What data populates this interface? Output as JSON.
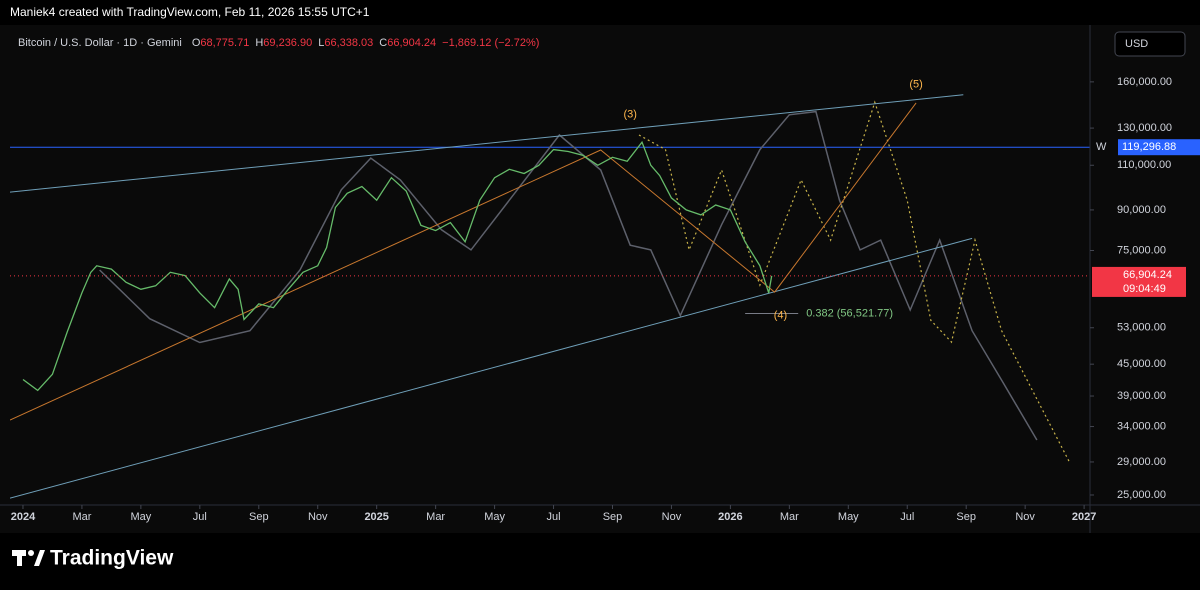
{
  "header": {
    "credit": "Maniek4 created with TradingView.com, Feb 11, 2026 15:55 UTC+1"
  },
  "legend": {
    "symbol": "Bitcoin / U.S. Dollar · 1D · Gemini",
    "ohlc": [
      {
        "label": "O",
        "value": "68,775.71"
      },
      {
        "label": "H",
        "value": "69,236.90"
      },
      {
        "label": "L",
        "value": "66,338.03"
      },
      {
        "label": "C",
        "value": "66,904.24"
      }
    ],
    "change": "−1,869.12 (−2.72%)"
  },
  "currency": "USD",
  "footer": {
    "brand": "TradingView"
  },
  "chart_data": {
    "type": "line",
    "log_scale": true,
    "grid": false,
    "xlim": [
      -0.44,
      36.2
    ],
    "ylim": [
      23900,
      202000
    ],
    "xticks": [
      {
        "value": 0,
        "label": "2024"
      },
      {
        "value": 2,
        "label": "Mar"
      },
      {
        "value": 4,
        "label": "May"
      },
      {
        "value": 6,
        "label": "Jul"
      },
      {
        "value": 8,
        "label": "Sep"
      },
      {
        "value": 10,
        "label": "Nov"
      },
      {
        "value": 12,
        "label": "2025"
      },
      {
        "value": 14,
        "label": "Mar"
      },
      {
        "value": 16,
        "label": "May"
      },
      {
        "value": 18,
        "label": "Jul"
      },
      {
        "value": 20,
        "label": "Sep"
      },
      {
        "value": 22,
        "label": "Nov"
      },
      {
        "value": 24,
        "label": "2026"
      },
      {
        "value": 26,
        "label": "Mar"
      },
      {
        "value": 28,
        "label": "May"
      },
      {
        "value": 30,
        "label": "Jul"
      },
      {
        "value": 32,
        "label": "Sep"
      },
      {
        "value": 34,
        "label": "Nov"
      },
      {
        "value": 36,
        "label": "2027"
      }
    ],
    "yticks": [
      {
        "value": 25000,
        "label": "25,000.00"
      },
      {
        "value": 29000,
        "label": "29,000.00"
      },
      {
        "value": 34000,
        "label": "34,000.00"
      },
      {
        "value": 39000,
        "label": "39,000.00"
      },
      {
        "value": 45000,
        "label": "45,000.00"
      },
      {
        "value": 53000,
        "label": "53,000.00"
      },
      {
        "value": 75000,
        "label": "75,000.00"
      },
      {
        "value": 90000,
        "label": "90,000.00"
      },
      {
        "value": 110000,
        "label": "110,000.00"
      },
      {
        "value": 130000,
        "label": "130,000.00"
      },
      {
        "value": 160000,
        "label": "160,000.00"
      }
    ],
    "series": [
      {
        "style": "solid",
        "color": "#5d606b",
        "width": 1.5,
        "x": [
          2.6,
          4.3,
          6.0,
          7.7,
          9.4,
          10.8,
          11.8,
          12.8,
          14.2,
          15.2,
          16.5,
          18.2,
          19.6,
          20.6,
          21.3,
          22.3,
          23.7,
          25.0,
          26.0,
          26.9,
          27.7,
          28.4,
          29.1,
          30.1,
          31.1,
          32.2,
          33.2,
          34.4
        ],
        "values": [
          68700,
          55200,
          49600,
          52300,
          68700,
          98500,
          113600,
          103000,
          82300,
          75200,
          94000,
          126000,
          107700,
          76800,
          75200,
          56000,
          84200,
          118000,
          138000,
          140000,
          94000,
          75200,
          78600,
          57400,
          78600,
          52300,
          41900,
          32000
        ]
      },
      {
        "style": "dotted",
        "color": "#c9b44a",
        "width": 1.2,
        "x": [
          20.9,
          21.8,
          22.6,
          23.7,
          25.0,
          26.4,
          27.4,
          28.9,
          30.0,
          30.8,
          31.5,
          32.3,
          33.2,
          35.5
        ],
        "values": [
          126000,
          118000,
          75200,
          107700,
          64200,
          103000,
          78600,
          146000,
          94000,
          54800,
          49700,
          78600,
          52300,
          29000
        ]
      },
      {
        "style": "solid",
        "color": "#6f9fb8",
        "width": 1,
        "x": [
          -0.44,
          31.9
        ],
        "values": [
          97500,
          151000
        ]
      },
      {
        "style": "solid",
        "color": "#6f9fb8",
        "width": 1,
        "x": [
          -0.44,
          32.2
        ],
        "values": [
          24650,
          79200
        ]
      },
      {
        "style": "solid",
        "color": "#c7772e",
        "width": 1,
        "x": [
          -0.44,
          19.6,
          25.5,
          30.3
        ],
        "values": [
          35000,
          117800,
          62200,
          145600
        ]
      },
      {
        "style": "solid",
        "color": "#66bb6a",
        "width": 1.3,
        "x": [
          0,
          0.5,
          1,
          1.5,
          2,
          2.3,
          2.5,
          3,
          3.5,
          4,
          4.5,
          5,
          5.5,
          6,
          6.5,
          7,
          7.3,
          7.5,
          8,
          8.5,
          9,
          9.5,
          10,
          10.3,
          10.6,
          11,
          11.5,
          12,
          12.5,
          13,
          13.5,
          14,
          14.5,
          15,
          15.5,
          16,
          16.5,
          17,
          17.5,
          18,
          18.5,
          19,
          19.5,
          20,
          20.5,
          21,
          21.3,
          21.6,
          22,
          22.5,
          23,
          23.5,
          24,
          24.5,
          25,
          25.3,
          25.4
        ],
        "values": [
          42000,
          40000,
          43000,
          52000,
          62000,
          68000,
          70000,
          69000,
          65000,
          63000,
          64000,
          68000,
          67000,
          62000,
          58000,
          66000,
          63000,
          55000,
          59000,
          58000,
          63000,
          68000,
          70000,
          76000,
          91000,
          97000,
          100000,
          94000,
          104000,
          98000,
          84000,
          82000,
          85000,
          78000,
          94000,
          104000,
          108000,
          106000,
          110000,
          118000,
          117000,
          115000,
          110000,
          114000,
          112000,
          122000,
          110000,
          105000,
          95000,
          90000,
          88000,
          92000,
          90000,
          78000,
          70000,
          62000,
          66904.24
        ]
      }
    ],
    "level": {
      "name": "W",
      "value": 119296.88,
      "label": "119,296.88",
      "color": "#2962ff"
    },
    "fib": {
      "label": "0.382 (56,521.77)",
      "value": 56521.77,
      "x": [
        24.5,
        26.3
      ]
    },
    "last_price": {
      "value": 66904.24,
      "label": "66,904.24",
      "countdown": "09:04:49",
      "color": "#f23645"
    },
    "annotations": [
      {
        "text": "(3)",
        "x": 20.6,
        "y": 138000
      },
      {
        "text": "(4)",
        "x": 25.7,
        "y": 56000
      },
      {
        "text": "(5)",
        "x": 30.3,
        "y": 158000
      }
    ]
  }
}
